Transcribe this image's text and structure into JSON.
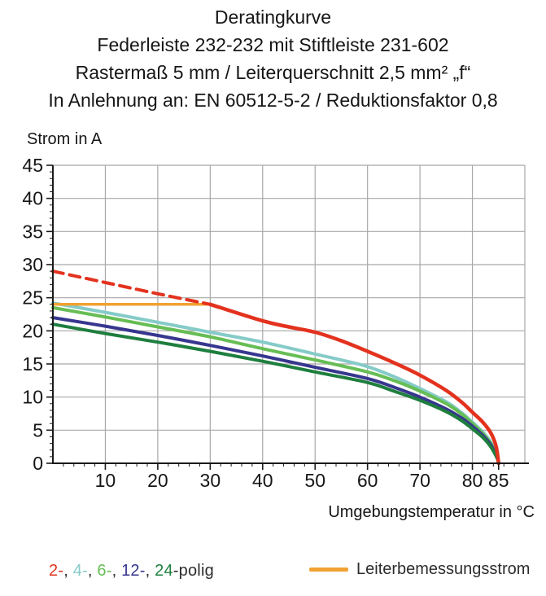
{
  "title": {
    "lines": [
      "Deratingkurve",
      "Federleiste 232-232 mit Stiftleiste 231-602",
      "Rastermaß 5 mm / Leiterquerschnitt 2,5 mm² „f“",
      "In Anlehnung an: EN 60512-5-2 / Reduktionsfaktor 0,8"
    ]
  },
  "axes": {
    "y_label": "Strom in A",
    "x_label": "Umgebungstemperatur in °C"
  },
  "legend": {
    "parts": [
      {
        "text": "2-",
        "color": "#e3321e"
      },
      {
        "text": ", ",
        "color": "#2d2d2d"
      },
      {
        "text": "4-",
        "color": "#85cbc8"
      },
      {
        "text": ", ",
        "color": "#2d2d2d"
      },
      {
        "text": "6-",
        "color": "#66bd54"
      },
      {
        "text": ", ",
        "color": "#2d2d2d"
      },
      {
        "text": "12-",
        "color": "#37368f"
      },
      {
        "text": ", ",
        "color": "#2d2d2d"
      },
      {
        "text": "24",
        "color": "#1e7e3e"
      },
      {
        "text": "-polig",
        "color": "#2d2d2d"
      }
    ],
    "line_swatch_color": "#f0a232",
    "line_label": "Leiterbemessungsstrom"
  },
  "chart_data": {
    "type": "line",
    "title": "Deratingkurve",
    "xlabel": "Umgebungstemperatur in °C",
    "ylabel": "Strom in A",
    "xlim": [
      0,
      90
    ],
    "ylim": [
      0,
      45
    ],
    "x_ticks": [
      10,
      20,
      30,
      40,
      50,
      60,
      70,
      80,
      85
    ],
    "y_ticks": [
      0,
      5,
      10,
      15,
      20,
      25,
      30,
      35,
      40,
      45
    ],
    "x_minor_step": 2,
    "y_minor_step": 1,
    "grid": true,
    "grid_color": "#a8a8a8",
    "axis_color": "#1a1a1a",
    "series": [
      {
        "name": "4-polig",
        "color": "#85cbc8",
        "width": 4,
        "dash": false,
        "points": [
          [
            0,
            24.2
          ],
          [
            10,
            22.8
          ],
          [
            20,
            21.3
          ],
          [
            30,
            19.8
          ],
          [
            40,
            18.3
          ],
          [
            50,
            16.5
          ],
          [
            55,
            15.6
          ],
          [
            60,
            14.6
          ],
          [
            65,
            13.1
          ],
          [
            70,
            11.3
          ],
          [
            75,
            9.3
          ],
          [
            78,
            7.6
          ],
          [
            80,
            6.2
          ],
          [
            82,
            4.7
          ],
          [
            83.5,
            3.2
          ],
          [
            84.7,
            1.2
          ],
          [
            85,
            0
          ]
        ]
      },
      {
        "name": "6-polig",
        "color": "#66bd54",
        "width": 4,
        "dash": false,
        "points": [
          [
            0,
            23.5
          ],
          [
            10,
            22.1
          ],
          [
            20,
            20.6
          ],
          [
            30,
            19.1
          ],
          [
            40,
            17.3
          ],
          [
            50,
            15.6
          ],
          [
            60,
            13.8
          ],
          [
            65,
            12.5
          ],
          [
            70,
            10.9
          ],
          [
            75,
            9.0
          ],
          [
            78,
            7.4
          ],
          [
            80,
            6.0
          ],
          [
            82,
            4.5
          ],
          [
            83.5,
            3.0
          ],
          [
            84.7,
            1.0
          ],
          [
            85,
            0
          ]
        ]
      },
      {
        "name": "12-polig",
        "color": "#37368f",
        "width": 4,
        "dash": false,
        "points": [
          [
            0,
            22
          ],
          [
            10,
            20.7
          ],
          [
            20,
            19.3
          ],
          [
            30,
            17.8
          ],
          [
            40,
            16.2
          ],
          [
            50,
            14.5
          ],
          [
            60,
            12.8
          ],
          [
            65,
            11.5
          ],
          [
            70,
            10.0
          ],
          [
            75,
            8.2
          ],
          [
            78,
            6.8
          ],
          [
            80,
            5.6
          ],
          [
            82,
            4.2
          ],
          [
            83.5,
            2.8
          ],
          [
            84.7,
            0.9
          ],
          [
            85,
            0
          ]
        ]
      },
      {
        "name": "24-polig",
        "color": "#1e7e3e",
        "width": 4,
        "dash": false,
        "points": [
          [
            0,
            21
          ],
          [
            10,
            19.6
          ],
          [
            20,
            18.3
          ],
          [
            30,
            16.9
          ],
          [
            40,
            15.4
          ],
          [
            50,
            13.8
          ],
          [
            60,
            12.2
          ],
          [
            65,
            10.9
          ],
          [
            70,
            9.5
          ],
          [
            75,
            7.8
          ],
          [
            78,
            6.4
          ],
          [
            80,
            5.2
          ],
          [
            82,
            3.9
          ],
          [
            83.5,
            2.5
          ],
          [
            84.7,
            0.8
          ],
          [
            85,
            0
          ]
        ]
      },
      {
        "name": "leiterbemessungsstrom",
        "color": "#f0a232",
        "width": 3.5,
        "dash": false,
        "points": [
          [
            0,
            24
          ],
          [
            30,
            24
          ]
        ]
      },
      {
        "name": "2-polig-extrapoliert",
        "color": "#e3321e",
        "width": 4,
        "dash": true,
        "points": [
          [
            0,
            29
          ],
          [
            10,
            27.3
          ],
          [
            20,
            25.6
          ],
          [
            30,
            24
          ]
        ]
      },
      {
        "name": "2-polig",
        "color": "#e3321e",
        "width": 4.5,
        "dash": false,
        "points": [
          [
            30,
            24
          ],
          [
            40,
            21.5
          ],
          [
            45,
            20.6
          ],
          [
            50,
            19.8
          ],
          [
            55,
            18.5
          ],
          [
            60,
            16.9
          ],
          [
            65,
            15.2
          ],
          [
            70,
            13.3
          ],
          [
            75,
            11.0
          ],
          [
            78,
            9.2
          ],
          [
            80,
            7.7
          ],
          [
            82,
            6.2
          ],
          [
            83.5,
            4.6
          ],
          [
            84.5,
            2.6
          ],
          [
            85,
            0
          ]
        ]
      }
    ]
  }
}
